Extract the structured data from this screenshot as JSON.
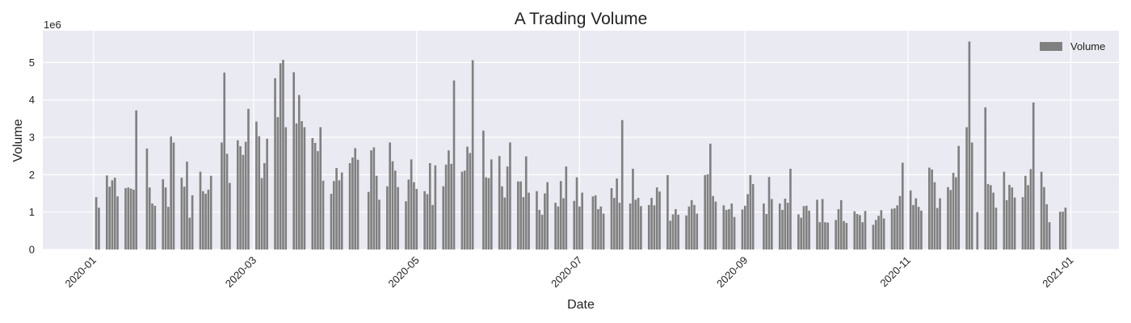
{
  "chart_data": {
    "type": "bar",
    "title": "A Trading Volume",
    "xlabel": "Date",
    "ylabel": "Volume",
    "y_scale_label": "1e6",
    "legend": {
      "entries": [
        "Volume"
      ],
      "placement": "top-right"
    },
    "grid": true,
    "xlim": [
      "2019-12-13",
      "2021-01-19"
    ],
    "ylim": [
      0,
      5.85
    ],
    "x_ticks": [
      "2020-01",
      "2020-03",
      "2020-05",
      "2020-07",
      "2020-09",
      "2020-11",
      "2021-01"
    ],
    "y_ticks": [
      "0",
      "1",
      "2",
      "3",
      "4",
      "5"
    ],
    "series": [
      {
        "name": "Volume",
        "points": [
          [
            "2020-01-02",
            1.4
          ],
          [
            "2020-01-03",
            1.12
          ],
          [
            "2020-01-06",
            1.98
          ],
          [
            "2020-01-07",
            1.68
          ],
          [
            "2020-01-08",
            1.85
          ],
          [
            "2020-01-09",
            1.92
          ],
          [
            "2020-01-10",
            1.42
          ],
          [
            "2020-01-13",
            1.64
          ],
          [
            "2020-01-14",
            1.66
          ],
          [
            "2020-01-15",
            1.63
          ],
          [
            "2020-01-16",
            1.6
          ],
          [
            "2020-01-17",
            3.72
          ],
          [
            "2020-01-21",
            2.7
          ],
          [
            "2020-01-22",
            1.66
          ],
          [
            "2020-01-23",
            1.23
          ],
          [
            "2020-01-24",
            1.17
          ],
          [
            "2020-01-27",
            1.88
          ],
          [
            "2020-01-28",
            1.66
          ],
          [
            "2020-01-29",
            1.14
          ],
          [
            "2020-01-30",
            3.02
          ],
          [
            "2020-01-31",
            2.86
          ],
          [
            "2020-02-03",
            1.92
          ],
          [
            "2020-02-04",
            1.68
          ],
          [
            "2020-02-05",
            2.35
          ],
          [
            "2020-02-06",
            0.85
          ],
          [
            "2020-02-07",
            1.45
          ],
          [
            "2020-02-10",
            2.08
          ],
          [
            "2020-02-11",
            1.56
          ],
          [
            "2020-02-12",
            1.49
          ],
          [
            "2020-02-13",
            1.6
          ],
          [
            "2020-02-14",
            1.97
          ],
          [
            "2020-02-18",
            2.86
          ],
          [
            "2020-02-19",
            4.73
          ],
          [
            "2020-02-20",
            2.56
          ],
          [
            "2020-02-21",
            1.78
          ],
          [
            "2020-02-24",
            2.92
          ],
          [
            "2020-02-25",
            2.76
          ],
          [
            "2020-02-26",
            2.53
          ],
          [
            "2020-02-27",
            2.88
          ],
          [
            "2020-02-28",
            3.76
          ],
          [
            "2020-03-02",
            3.42
          ],
          [
            "2020-03-03",
            3.03
          ],
          [
            "2020-03-04",
            1.91
          ],
          [
            "2020-03-05",
            2.31
          ],
          [
            "2020-03-06",
            2.96
          ],
          [
            "2020-03-09",
            4.58
          ],
          [
            "2020-03-10",
            3.54
          ],
          [
            "2020-03-11",
            4.98
          ],
          [
            "2020-03-12",
            5.07
          ],
          [
            "2020-03-13",
            3.27
          ],
          [
            "2020-03-16",
            4.74
          ],
          [
            "2020-03-17",
            3.37
          ],
          [
            "2020-03-18",
            4.13
          ],
          [
            "2020-03-19",
            3.43
          ],
          [
            "2020-03-20",
            3.27
          ],
          [
            "2020-03-23",
            2.98
          ],
          [
            "2020-03-24",
            2.85
          ],
          [
            "2020-03-25",
            2.63
          ],
          [
            "2020-03-26",
            3.27
          ],
          [
            "2020-03-27",
            1.84
          ],
          [
            "2020-03-30",
            1.49
          ],
          [
            "2020-03-31",
            1.83
          ],
          [
            "2020-04-01",
            2.18
          ],
          [
            "2020-04-02",
            1.85
          ],
          [
            "2020-04-03",
            2.06
          ],
          [
            "2020-04-06",
            2.31
          ],
          [
            "2020-04-07",
            2.46
          ],
          [
            "2020-04-08",
            2.71
          ],
          [
            "2020-04-09",
            2.4
          ],
          [
            "2020-04-13",
            1.54
          ],
          [
            "2020-04-14",
            2.65
          ],
          [
            "2020-04-15",
            2.73
          ],
          [
            "2020-04-16",
            1.97
          ],
          [
            "2020-04-17",
            1.33
          ],
          [
            "2020-04-20",
            1.69
          ],
          [
            "2020-04-21",
            2.86
          ],
          [
            "2020-04-22",
            2.36
          ],
          [
            "2020-04-23",
            2.11
          ],
          [
            "2020-04-24",
            1.67
          ],
          [
            "2020-04-27",
            1.29
          ],
          [
            "2020-04-28",
            1.87
          ],
          [
            "2020-04-29",
            2.41
          ],
          [
            "2020-04-30",
            1.8
          ],
          [
            "2020-05-01",
            1.62
          ],
          [
            "2020-05-04",
            1.56
          ],
          [
            "2020-05-05",
            1.48
          ],
          [
            "2020-05-06",
            2.31
          ],
          [
            "2020-05-07",
            1.19
          ],
          [
            "2020-05-08",
            2.25
          ],
          [
            "2020-05-11",
            1.69
          ],
          [
            "2020-05-12",
            2.27
          ],
          [
            "2020-05-13",
            2.65
          ],
          [
            "2020-05-14",
            2.29
          ],
          [
            "2020-05-15",
            4.52
          ],
          [
            "2020-05-18",
            2.08
          ],
          [
            "2020-05-19",
            2.11
          ],
          [
            "2020-05-20",
            2.75
          ],
          [
            "2020-05-21",
            2.58
          ],
          [
            "2020-05-22",
            5.06
          ],
          [
            "2020-05-26",
            3.18
          ],
          [
            "2020-05-27",
            1.93
          ],
          [
            "2020-05-28",
            1.91
          ],
          [
            "2020-05-29",
            2.41
          ],
          [
            "2020-06-01",
            2.5
          ],
          [
            "2020-06-02",
            1.69
          ],
          [
            "2020-06-03",
            1.39
          ],
          [
            "2020-06-04",
            2.22
          ],
          [
            "2020-06-05",
            2.86
          ],
          [
            "2020-06-08",
            1.82
          ],
          [
            "2020-06-09",
            1.82
          ],
          [
            "2020-06-10",
            1.4
          ],
          [
            "2020-06-11",
            2.49
          ],
          [
            "2020-06-12",
            1.52
          ],
          [
            "2020-06-15",
            1.56
          ],
          [
            "2020-06-16",
            1.06
          ],
          [
            "2020-06-17",
            0.93
          ],
          [
            "2020-06-18",
            1.5
          ],
          [
            "2020-06-19",
            1.8
          ],
          [
            "2020-06-22",
            1.25
          ],
          [
            "2020-06-23",
            1.15
          ],
          [
            "2020-06-24",
            1.83
          ],
          [
            "2020-06-25",
            1.37
          ],
          [
            "2020-06-26",
            2.22
          ],
          [
            "2020-06-29",
            1.3
          ],
          [
            "2020-06-30",
            1.93
          ],
          [
            "2020-07-01",
            1.15
          ],
          [
            "2020-07-02",
            1.52
          ],
          [
            "2020-07-06",
            1.42
          ],
          [
            "2020-07-07",
            1.45
          ],
          [
            "2020-07-08",
            1.08
          ],
          [
            "2020-07-09",
            1.15
          ],
          [
            "2020-07-10",
            0.96
          ],
          [
            "2020-07-13",
            1.64
          ],
          [
            "2020-07-14",
            1.38
          ],
          [
            "2020-07-15",
            1.9
          ],
          [
            "2020-07-16",
            1.25
          ],
          [
            "2020-07-17",
            3.46
          ],
          [
            "2020-07-20",
            1.23
          ],
          [
            "2020-07-21",
            2.16
          ],
          [
            "2020-07-22",
            1.33
          ],
          [
            "2020-07-23",
            1.38
          ],
          [
            "2020-07-24",
            1.16
          ],
          [
            "2020-07-27",
            1.19
          ],
          [
            "2020-07-28",
            1.38
          ],
          [
            "2020-07-29",
            1.18
          ],
          [
            "2020-07-30",
            1.66
          ],
          [
            "2020-07-31",
            1.55
          ],
          [
            "2020-08-03",
            1.99
          ],
          [
            "2020-08-04",
            0.77
          ],
          [
            "2020-08-05",
            0.94
          ],
          [
            "2020-08-06",
            1.08
          ],
          [
            "2020-08-07",
            0.93
          ],
          [
            "2020-08-10",
            0.91
          ],
          [
            "2020-08-11",
            1.15
          ],
          [
            "2020-08-12",
            1.32
          ],
          [
            "2020-08-13",
            1.19
          ],
          [
            "2020-08-14",
            0.96
          ],
          [
            "2020-08-17",
            1.99
          ],
          [
            "2020-08-18",
            2.01
          ],
          [
            "2020-08-19",
            2.83
          ],
          [
            "2020-08-20",
            1.43
          ],
          [
            "2020-08-21",
            1.28
          ],
          [
            "2020-08-24",
            1.18
          ],
          [
            "2020-08-25",
            1.06
          ],
          [
            "2020-08-26",
            1.08
          ],
          [
            "2020-08-27",
            1.23
          ],
          [
            "2020-08-28",
            0.87
          ],
          [
            "2020-08-31",
            1.07
          ],
          [
            "2020-09-01",
            1.17
          ],
          [
            "2020-09-02",
            1.48
          ],
          [
            "2020-09-03",
            1.99
          ],
          [
            "2020-09-04",
            1.75
          ],
          [
            "2020-09-08",
            1.23
          ],
          [
            "2020-09-09",
            0.95
          ],
          [
            "2020-09-10",
            1.94
          ],
          [
            "2020-09-11",
            1.35
          ],
          [
            "2020-09-14",
            1.23
          ],
          [
            "2020-09-15",
            1.06
          ],
          [
            "2020-09-16",
            1.36
          ],
          [
            "2020-09-17",
            1.25
          ],
          [
            "2020-09-18",
            2.16
          ],
          [
            "2020-09-21",
            0.94
          ],
          [
            "2020-09-22",
            0.85
          ],
          [
            "2020-09-23",
            1.16
          ],
          [
            "2020-09-24",
            1.17
          ],
          [
            "2020-09-25",
            1.04
          ],
          [
            "2020-09-28",
            1.33
          ],
          [
            "2020-09-29",
            0.73
          ],
          [
            "2020-09-30",
            1.35
          ],
          [
            "2020-10-01",
            0.73
          ],
          [
            "2020-10-02",
            0.72
          ],
          [
            "2020-10-05",
            0.79
          ],
          [
            "2020-10-06",
            1.08
          ],
          [
            "2020-10-07",
            1.32
          ],
          [
            "2020-10-08",
            0.76
          ],
          [
            "2020-10-09",
            0.71
          ],
          [
            "2020-10-12",
            1.02
          ],
          [
            "2020-10-13",
            0.95
          ],
          [
            "2020-10-14",
            0.92
          ],
          [
            "2020-10-15",
            0.73
          ],
          [
            "2020-10-16",
            1.03
          ],
          [
            "2020-10-19",
            0.66
          ],
          [
            "2020-10-20",
            0.79
          ],
          [
            "2020-10-21",
            0.9
          ],
          [
            "2020-10-22",
            1.05
          ],
          [
            "2020-10-23",
            0.83
          ],
          [
            "2020-10-26",
            1.09
          ],
          [
            "2020-10-27",
            1.1
          ],
          [
            "2020-10-28",
            1.18
          ],
          [
            "2020-10-29",
            1.43
          ],
          [
            "2020-10-30",
            2.32
          ],
          [
            "2020-11-02",
            1.58
          ],
          [
            "2020-11-03",
            1.19
          ],
          [
            "2020-11-04",
            1.37
          ],
          [
            "2020-11-05",
            1.14
          ],
          [
            "2020-11-06",
            1.04
          ],
          [
            "2020-11-09",
            2.19
          ],
          [
            "2020-11-10",
            2.14
          ],
          [
            "2020-11-11",
            1.8
          ],
          [
            "2020-11-12",
            1.11
          ],
          [
            "2020-11-13",
            1.37
          ],
          [
            "2020-11-16",
            1.67
          ],
          [
            "2020-11-17",
            1.59
          ],
          [
            "2020-11-18",
            2.05
          ],
          [
            "2020-11-19",
            1.93
          ],
          [
            "2020-11-20",
            2.77
          ],
          [
            "2020-11-23",
            3.27
          ],
          [
            "2020-11-24",
            5.56
          ],
          [
            "2020-11-25",
            2.86
          ],
          [
            "2020-11-27",
            1.0
          ],
          [
            "2020-11-30",
            3.8
          ],
          [
            "2020-12-01",
            1.75
          ],
          [
            "2020-12-02",
            1.72
          ],
          [
            "2020-12-03",
            1.52
          ],
          [
            "2020-12-04",
            1.12
          ],
          [
            "2020-12-07",
            2.08
          ],
          [
            "2020-12-08",
            1.32
          ],
          [
            "2020-12-09",
            1.73
          ],
          [
            "2020-12-10",
            1.66
          ],
          [
            "2020-12-11",
            1.39
          ],
          [
            "2020-12-14",
            1.4
          ],
          [
            "2020-12-15",
            1.97
          ],
          [
            "2020-12-16",
            1.72
          ],
          [
            "2020-12-17",
            2.15
          ],
          [
            "2020-12-18",
            3.93
          ],
          [
            "2020-12-21",
            2.08
          ],
          [
            "2020-12-22",
            1.67
          ],
          [
            "2020-12-23",
            1.21
          ],
          [
            "2020-12-24",
            0.73
          ],
          [
            "2020-12-28",
            1.01
          ],
          [
            "2020-12-29",
            1.01
          ],
          [
            "2020-12-30",
            1.12
          ]
        ]
      }
    ]
  },
  "colors": {
    "bar": "#808080",
    "plot_bg": "#EAEAF2",
    "grid": "#FFFFFF",
    "text": "#222222"
  }
}
